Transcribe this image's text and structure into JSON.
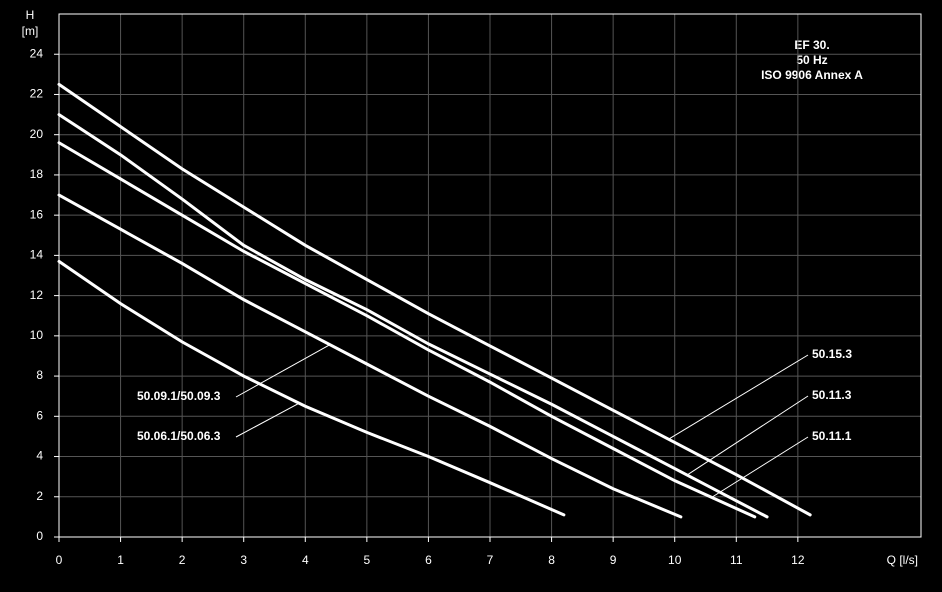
{
  "chart_data": {
    "type": "line",
    "x_label": "Q [l/s]",
    "y_label_top": "H",
    "y_label_unit": "[m]",
    "annotation": [
      "EF 30.",
      "50 Hz",
      "ISO 9906 Annex A"
    ],
    "xlim": [
      0,
      14
    ],
    "xticks": [
      0,
      1,
      2,
      3,
      4,
      5,
      6,
      7,
      8,
      9,
      10,
      11,
      12
    ],
    "ylim": [
      0,
      26
    ],
    "yticks": [
      0,
      2,
      4,
      6,
      8,
      10,
      12,
      14,
      16,
      18,
      20,
      22,
      24
    ],
    "grid": true,
    "series": [
      {
        "name": "50.06.1/50.06.3",
        "color": "#ffffff",
        "x": [
          0,
          1,
          2,
          3,
          4,
          5,
          6,
          7,
          8.2
        ],
        "values": [
          13.7,
          11.6,
          9.7,
          8.0,
          6.5,
          5.2,
          4.0,
          2.7,
          1.1
        ]
      },
      {
        "name": "50.09.1/50.09.3",
        "color": "#ffffff",
        "x": [
          0,
          1,
          2,
          3,
          4,
          5,
          6,
          7,
          8,
          9,
          10.1
        ],
        "values": [
          17.0,
          15.3,
          13.6,
          11.8,
          10.2,
          8.6,
          7.0,
          5.5,
          3.9,
          2.4,
          1.0
        ]
      },
      {
        "name": "50.11.1",
        "color": "#ffffff",
        "x": [
          0,
          1,
          2,
          3,
          4,
          5,
          6,
          7,
          8,
          9,
          10,
          11.3
        ],
        "values": [
          19.6,
          17.8,
          16.0,
          14.2,
          12.6,
          11.0,
          9.3,
          7.7,
          6.0,
          4.4,
          2.8,
          1.0
        ]
      },
      {
        "name": "50.11.3",
        "color": "#ffffff",
        "x": [
          0,
          1,
          2,
          3,
          4,
          5,
          6,
          7,
          8,
          9,
          10,
          11,
          11.5
        ],
        "values": [
          21.0,
          19.0,
          16.8,
          14.5,
          12.8,
          11.3,
          9.6,
          8.1,
          6.6,
          5.0,
          3.4,
          1.8,
          1.0
        ]
      },
      {
        "name": "50.15.3",
        "color": "#ffffff",
        "x": [
          0,
          1,
          2,
          3,
          4,
          5,
          6,
          7,
          8,
          9,
          10,
          11,
          12.2
        ],
        "values": [
          22.5,
          20.4,
          18.3,
          16.4,
          14.5,
          12.8,
          11.1,
          9.5,
          7.9,
          6.3,
          4.7,
          3.1,
          1.1
        ]
      }
    ]
  }
}
